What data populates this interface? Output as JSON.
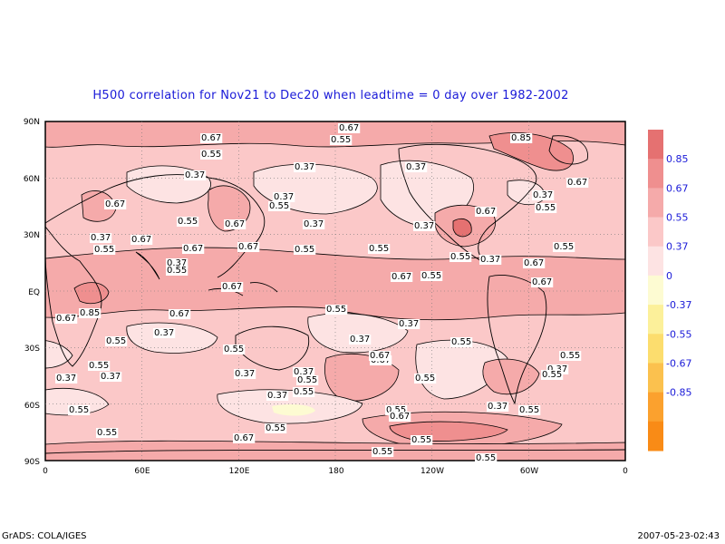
{
  "title": "H500 correlation for  Nov21 to Dec20  when leadtime =  0 day over 1982-2002",
  "footer_left": "GrADS: COLA/IGES",
  "footer_right": "2007-05-23-02:43",
  "axes": {
    "lat_ticks": [
      "90N",
      "60N",
      "30N",
      "EQ",
      "30S",
      "60S",
      "90S"
    ],
    "lon_ticks": [
      "0",
      "60E",
      "120E",
      "180",
      "120W",
      "60W",
      "0"
    ]
  },
  "legend": {
    "colors": [
      "#e57171",
      "#ef8f8f",
      "#f5aaaa",
      "#fbc8c8",
      "#fde3e3",
      "#fdfbd2",
      "#fcf09a",
      "#fcdd6e",
      "#fbc14e",
      "#fba12e",
      "#f98b16"
    ],
    "labels": [
      "0.85",
      "0.67",
      "0.55",
      "0.37",
      "0",
      "-0.37",
      "-0.55",
      "-0.67",
      "-0.85"
    ]
  },
  "fills": {
    "c037": "#fde3e3",
    "c055": "#fbc8c8",
    "c067": "#f5aaaa",
    "c085": "#ef8f8f",
    "c_high": "#e57171",
    "c_neg": "#fdfbd2"
  },
  "contour_labels": [
    "0.67",
    "0.55",
    "0.85",
    "0.67",
    "0.55",
    "0.37",
    "0.37",
    "0.37",
    "0.67",
    "0.37",
    "0.55",
    "0.55",
    "0.67",
    "0.55",
    "0.37",
    "0.67",
    "0.55",
    "0.37",
    "0.67",
    "0.37",
    "0.67",
    "0.55",
    "0.37",
    "0.55",
    "0.55",
    "0.37",
    "0.67",
    "0.55",
    "0.55",
    "0.67",
    "0.67",
    "0.67",
    "0.67",
    "0.85",
    "0.67",
    "0.37",
    "0.55",
    "0.67",
    "0.37",
    "0.67",
    "0.55",
    "0.55",
    "0.37",
    "0.55",
    "0.37",
    "0.55",
    "0.37",
    "0.37",
    "0.55",
    "0.67",
    "0.55",
    "0.37",
    "0.55",
    "0.37",
    "0.37",
    "0.67",
    "0.55",
    "0.55",
    "0.55",
    "0.37",
    "0.55",
    "0.37",
    "0.55",
    "0.67",
    "0.55",
    "0.55",
    "0.55",
    "0.67",
    "0.55"
  ]
}
